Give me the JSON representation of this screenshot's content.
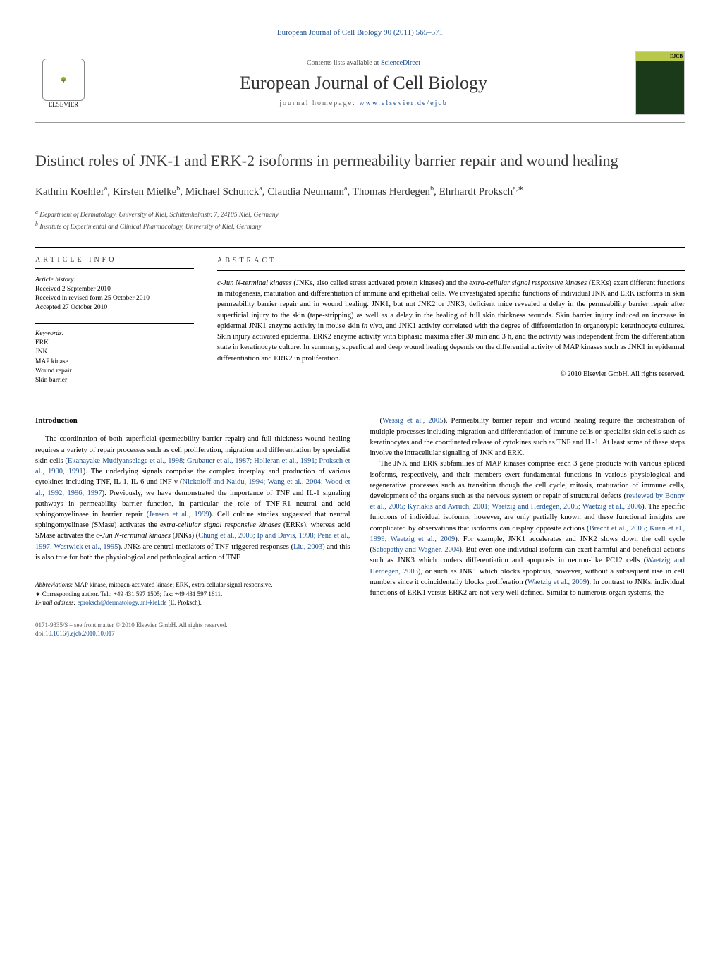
{
  "journal_ref": {
    "text": "European Journal of Cell Biology 90 (2011) 565–571",
    "link_text": "ScienceDirect",
    "contents_prefix": "Contents lists available at "
  },
  "header": {
    "journal_title": "European Journal of Cell Biology",
    "homepage_prefix": "journal homepage: ",
    "homepage_url": "www.elsevier.de/ejcb",
    "elsevier_label": "ELSEVIER",
    "cover_label": "EJCB"
  },
  "title": "Distinct roles of JNK-1 and ERK-2 isoforms in permeability barrier repair and wound healing",
  "authors_html": "Kathrin Koehler<sup>a</sup>, Kirsten Mielke<sup>b</sup>, Michael Schunck<sup>a</sup>, Claudia Neumann<sup>a</sup>, Thomas Herdegen<sup>b</sup>, Ehrhardt Proksch<sup>a,∗</sup>",
  "affiliations": {
    "a": "Department of Dermatology, University of Kiel, Schittenhelmstr. 7, 24105 Kiel, Germany",
    "b": "Institute of Experimental and Clinical Pharmacology, University of Kiel, Germany"
  },
  "article_info": {
    "heading": "ARTICLE INFO",
    "history_label": "Article history:",
    "received": "Received 2 September 2010",
    "revised": "Received in revised form 25 October 2010",
    "accepted": "Accepted 27 October 2010",
    "keywords_label": "Keywords:",
    "keywords": [
      "ERK",
      "JNK",
      "MAP kinase",
      "Wound repair",
      "Skin barrier"
    ]
  },
  "abstract": {
    "heading": "ABSTRACT",
    "text": "c-jun N-terminal kinases (JNKs, also called stress activated protein kinases) and the extra-cellular signal responsive kinases (ERKs) exert different functions in mitogenesis, maturation and differentiation of immune and epithelial cells. We investigated specific functions of individual JNK and ERK isoforms in skin permeability barrier repair and in wound healing. JNK1, but not JNK2 or JNK3, deficient mice revealed a delay in the permeability barrier repair after superficial injury to the skin (tape-stripping) as well as a delay in the healing of full skin thickness wounds. Skin barrier injury induced an increase in epidermal JNK1 enzyme activity in mouse skin in vivo, and JNK1 activity correlated with the degree of differentiation in organotypic keratinocyte cultures. Skin injury activated epidermal ERK2 enzyme activity with biphasic maxima after 30 min and 3 h, and the activity was independent from the differentiation state in keratinocyte culture. In summary, superficial and deep wound healing depends on the differential activity of MAP kinases such as JNK1 in epidermal differentiation and ERK2 in proliferation.",
    "copyright": "© 2010 Elsevier GmbH. All rights reserved."
  },
  "body": {
    "intro_heading": "Introduction",
    "col1_p1": "The coordination of both superficial (permeability barrier repair) and full thickness wound healing requires a variety of repair processes such as cell proliferation, migration and differentiation by specialist skin cells (Ekanayake-Mudiyanselage et al., 1998; Grubauer et al., 1987; Holleran et al., 1991; Proksch et al., 1990, 1991). The underlying signals comprise the complex interplay and production of various cytokines including TNF, IL-1, IL-6 und INF-γ (Nickoloff and Naidu, 1994; Wang et al., 2004; Wood et al., 1992, 1996, 1997). Previously, we have demonstrated the importance of TNF and IL-1 signaling pathways in permeability barrier function, in particular the role of TNF-R1 neutral and acid sphingomyelinase in barrier repair (Jensen et al., 1999). Cell culture studies suggested that neutral sphingomyelinase (SMase) activates the extra-cellular signal responsive kinases (ERKs), whereas acid SMase activates the c-Jun N-terminal kinases (JNKs) (Chung et al., 2003; Ip and Davis, 1998; Pena et al., 1997; Westwick et al., 1995). JNKs are central mediators of TNF-triggered responses (Liu, 2003) and this is also true for both the physiological and pathological action of TNF",
    "col2_p1": "(Wessig et al., 2005). Permeability barrier repair and wound healing require the orchestration of multiple processes including migration and differentiation of immune cells or specialist skin cells such as keratinocytes and the coordinated release of cytokines such as TNF and IL-1. At least some of these steps involve the intracellular signaling of JNK and ERK.",
    "col2_p2": "The JNK and ERK subfamilies of MAP kinases comprise each 3 gene products with various spliced isoforms, respectively, and their members exert fundamental functions in various physiological and regenerative processes such as transition though the cell cycle, mitosis, maturation of immune cells, development of the organs such as the nervous system or repair of structural defects (reviewed by Bonny et al., 2005; Kyriakis and Avruch, 2001; Waetzig and Herdegen, 2005; Waetzig et al., 2006). The specific functions of individual isoforms, however, are only partially known and these functional insights are complicated by observations that isoforms can display opposite actions (Brecht et al., 2005; Kuan et al., 1999; Waetzig et al., 2009). For example, JNK1 accelerates and JNK2 slows down the cell cycle (Sabapathy and Wagner, 2004). But even one individual isoform can exert harmful and beneficial actions such as JNK3 which confers differentiation and apoptosis in neuron-like PC12 cells (Waetzig and Herdegen, 2003), or such as JNK1 which blocks apoptosis, however, without a subsequent rise in cell numbers since it coincidentally blocks proliferation (Waetzig et al., 2009). In contrast to JNKs, individual functions of ERK1 versus ERK2 are not very well defined. Similar to numerous organ systems, the"
  },
  "footnotes": {
    "abbrev_label": "Abbreviations:",
    "abbrev_text": " MAP kinase, mitogen-activated kinase; ERK, extra-cellular signal responsive.",
    "corr_label": "∗ Corresponding author. ",
    "corr_text": "Tel.: +49 431 597 1505; fax: +49 431 597 1611.",
    "email_label": "E-mail address: ",
    "email": "eproksch@dermatology.uni-kiel.de",
    "email_suffix": " (E. Proksch)."
  },
  "footer_pub": {
    "issn": "0171-9335/$ – see front matter © 2010 Elsevier GmbH. All rights reserved.",
    "doi_label": "doi:",
    "doi": "10.1016/j.ejcb.2010.10.017"
  },
  "colors": {
    "link": "#1a4d8f",
    "text": "#000000",
    "muted": "#555555",
    "border": "#999999"
  }
}
